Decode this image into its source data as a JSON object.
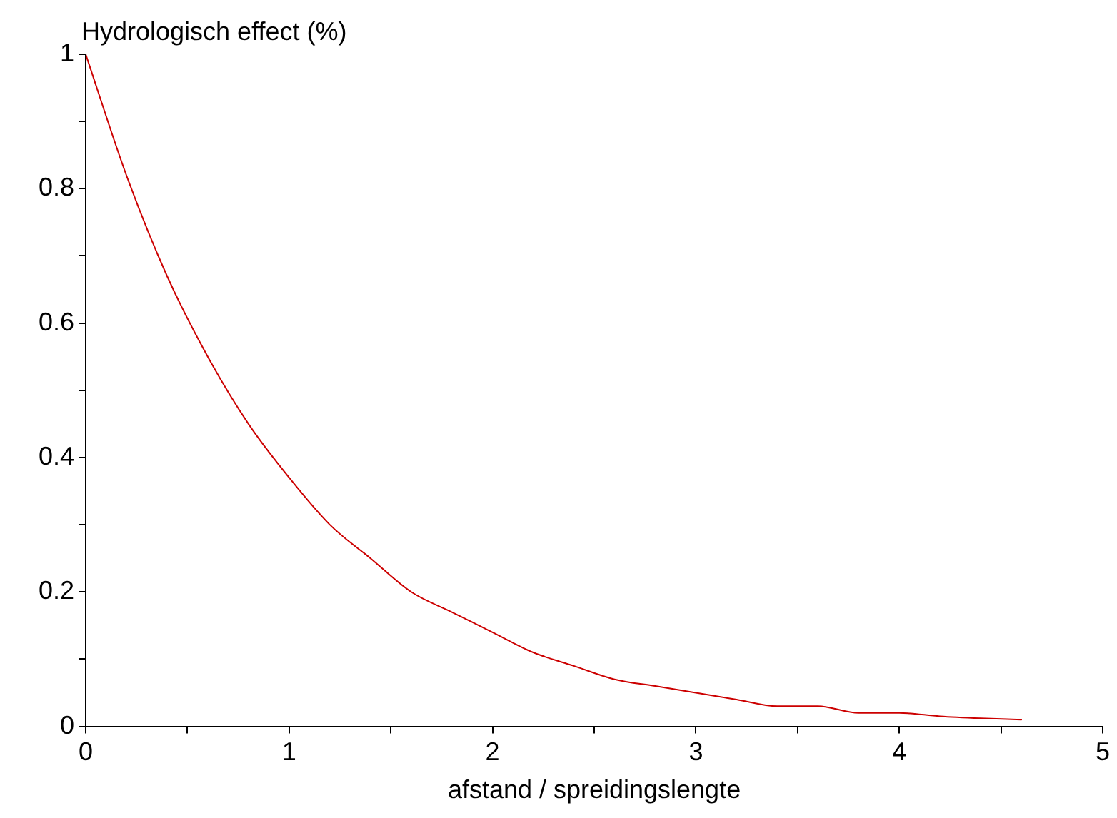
{
  "chart_data": {
    "type": "line",
    "xlabel": "afstand / spreidingslengte",
    "ylabel": "Hydrologisch effect (%)",
    "series": [
      {
        "color": "#cc0000",
        "x": [
          0,
          0.2,
          0.4,
          0.6,
          0.8,
          1,
          1.2,
          1.4,
          1.6,
          1.8,
          2,
          2.2,
          2.4,
          2.6,
          2.8,
          3,
          3.2,
          3.4,
          3.6,
          3.8,
          4,
          4.2,
          4.4,
          4.6
        ],
        "values": [
          1,
          0.82,
          0.67,
          0.55,
          0.45,
          0.37,
          0.3,
          0.25,
          0.2,
          0.17,
          0.14,
          0.11,
          0.09,
          0.07,
          0.06,
          0.05,
          0.04,
          0.03,
          0.03,
          0.02,
          0.02,
          0.015,
          0.012,
          0.01
        ]
      }
    ],
    "xlim": [
      0,
      5
    ],
    "ylim": [
      0,
      1
    ],
    "xticks": [
      0,
      {
        "value": 0.5,
        "label": null
      },
      1,
      {
        "value": 1.5,
        "label": null
      },
      2,
      {
        "value": 2.5,
        "label": null
      },
      3,
      {
        "value": 3.5,
        "label": null
      },
      4,
      {
        "value": 4.5,
        "label": null
      },
      5
    ],
    "yticks": [
      0,
      {
        "value": 0.1,
        "label": null
      },
      0.2,
      {
        "value": 0.3,
        "label": null
      },
      0.4,
      {
        "value": 0.5,
        "label": null
      },
      0.6,
      {
        "value": 0.7,
        "label": null
      },
      0.8,
      {
        "value": 0.9,
        "label": null
      },
      1
    ],
    "grid": false,
    "legend": false,
    "marker": "none",
    "line_style": "solid"
  }
}
